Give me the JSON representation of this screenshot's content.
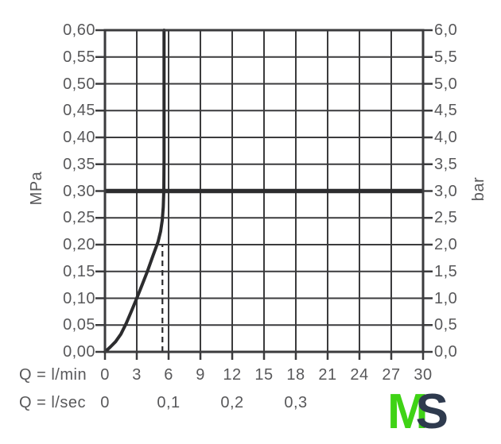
{
  "chart_data": {
    "type": "line",
    "title": "",
    "grid": true,
    "x_axis": {
      "label": "Q = l/min",
      "range": [
        0,
        30
      ],
      "tick_values": [
        0,
        3,
        6,
        9,
        12,
        15,
        18,
        21,
        24,
        27,
        30
      ],
      "ticks": [
        "0",
        "3",
        "6",
        "9",
        "12",
        "15",
        "18",
        "21",
        "24",
        "27",
        "30"
      ]
    },
    "x_axis_secondary": {
      "label": "Q = l/sec",
      "ticks": [
        "0",
        "0,1",
        "0,2",
        "0,3"
      ],
      "tick_values_lmin": [
        0,
        6,
        12,
        18
      ]
    },
    "y_axis_left": {
      "label": "MPa",
      "range": [
        0,
        0.6
      ],
      "tick_values": [
        0.6,
        0.55,
        0.5,
        0.45,
        0.4,
        0.35,
        0.3,
        0.25,
        0.2,
        0.15,
        0.1,
        0.05,
        0.0
      ],
      "ticks": [
        "0,60",
        "0,55",
        "0,50",
        "0,45",
        "0,40",
        "0,35",
        "0,30",
        "0,25",
        "0,20",
        "0,15",
        "0,10",
        "0,05",
        "0,00"
      ]
    },
    "y_axis_right": {
      "label": "bar",
      "range": [
        0,
        6
      ],
      "tick_values": [
        6.0,
        5.5,
        5.0,
        4.5,
        4.0,
        3.5,
        3.0,
        2.5,
        2.0,
        1.5,
        1.0,
        0.5,
        0.0
      ],
      "ticks": [
        "6,0",
        "5,5",
        "5,0",
        "4,5",
        "4,0",
        "3,5",
        "3,0",
        "2,5",
        "2,0",
        "1,5",
        "1,0",
        "0,5",
        "0,0"
      ]
    },
    "series": [
      {
        "name": "flow-rate-curve",
        "points_lmin_mpa": [
          [
            0,
            0
          ],
          [
            0.5,
            0.009
          ],
          [
            1,
            0.019
          ],
          [
            1.5,
            0.033
          ],
          [
            2,
            0.053
          ],
          [
            2.5,
            0.076
          ],
          [
            3,
            0.1
          ],
          [
            3.5,
            0.125
          ],
          [
            4,
            0.15
          ],
          [
            4.5,
            0.178
          ],
          [
            5,
            0.205
          ],
          [
            5.25,
            0.225
          ],
          [
            5.4,
            0.245
          ],
          [
            5.5,
            0.27
          ],
          [
            5.55,
            0.3
          ],
          [
            5.57,
            0.36
          ],
          [
            5.57,
            0.6
          ]
        ]
      }
    ],
    "reference_lines": [
      {
        "name": "operating-pressure-line",
        "orientation": "horizontal",
        "value_mpa": 0.3,
        "value_bar": 3.0,
        "style": "thick-solid"
      },
      {
        "name": "flow-at-pressure-dashed-line",
        "orientation": "vertical",
        "value_lmin": 5.42,
        "from_mpa": 0.0,
        "to_mpa": 0.2,
        "style": "dashed"
      }
    ],
    "colors": {
      "grid": "#3b3b3d",
      "curve": "#2c2c2e",
      "labels": "#58585a"
    }
  },
  "logo": {
    "text_m": "M",
    "text_s": "S",
    "color_m": "#3fd315",
    "color_s": "#2e3a4e"
  }
}
